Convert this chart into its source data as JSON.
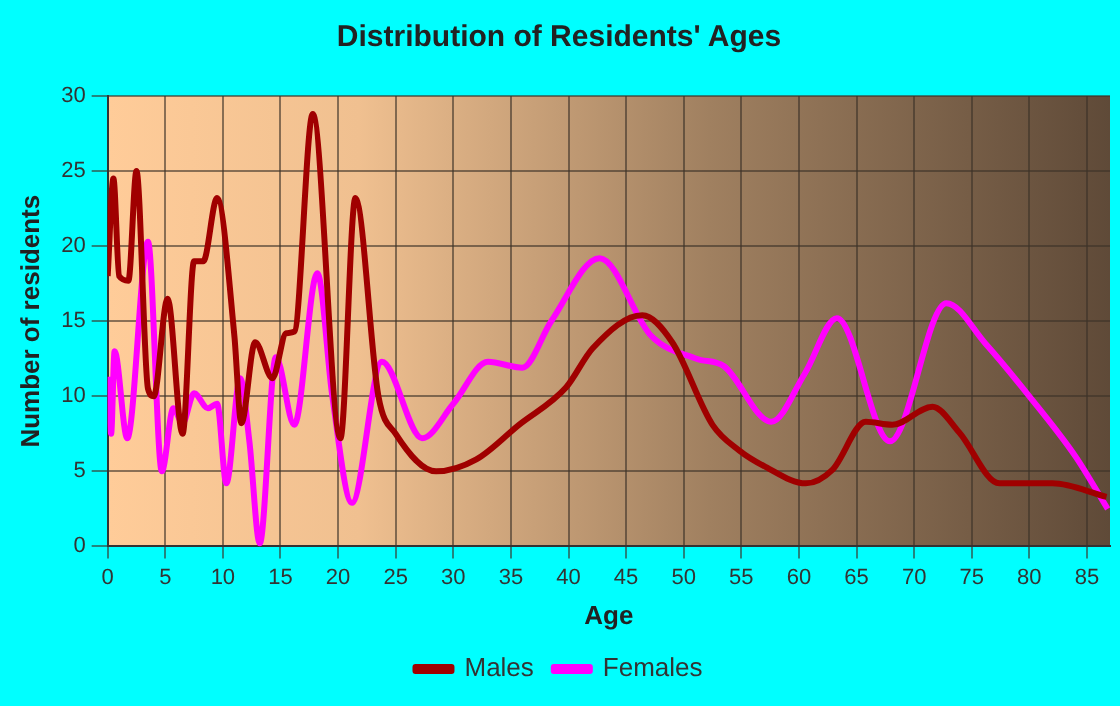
{
  "chart_data": {
    "type": "line",
    "title": "Distribution of Residents' Ages",
    "xlabel": "Age",
    "ylabel": "Number of residents",
    "xlim": [
      0,
      87
    ],
    "xticks": [
      0,
      5,
      10,
      15,
      20,
      25,
      30,
      35,
      40,
      45,
      50,
      55,
      60,
      65,
      70,
      75,
      80,
      85
    ],
    "ylim": [
      0,
      30
    ],
    "yticks": [
      0,
      5,
      10,
      15,
      20,
      25,
      30
    ],
    "grid": true,
    "legend": "bottom",
    "marker": "none",
    "line_style": "solid",
    "series": [
      {
        "name": "Males",
        "color": "#a00000",
        "x": [
          0,
          0.5,
          1,
          1.8,
          2.5,
          3.5,
          4,
          5.2,
          6.5,
          7.5,
          8.3,
          9.5,
          11,
          11.6,
          12.8,
          14.3,
          15.5,
          16.2,
          17.8,
          20.2,
          21.5,
          23.5,
          25,
          28.5,
          32,
          35.7,
          39.8,
          42.1,
          46.4,
          49,
          52.5,
          54.8,
          57.1,
          60.6,
          62.9,
          65.8,
          68.1,
          71.6,
          73.9,
          77.4,
          82,
          86.7
        ],
        "values": [
          18,
          24.5,
          18,
          17.7,
          25,
          10.5,
          10,
          16.5,
          7.5,
          19,
          19,
          23.2,
          14,
          8.2,
          13.6,
          11.2,
          14.2,
          14.3,
          28.8,
          7.2,
          23.2,
          10,
          7.5,
          5,
          5.8,
          8.1,
          10.6,
          13.2,
          15.4,
          13.6,
          8.1,
          6.4,
          5.3,
          4.2,
          5.1,
          8.3,
          8.1,
          9.3,
          7.6,
          4.2,
          4.2,
          3.3
        ]
      },
      {
        "name": "Females",
        "color": "#ff00ff",
        "x": [
          0,
          0.3,
          0.6,
          1.7,
          3.5,
          4.7,
          5.7,
          6.5,
          7.5,
          8.7,
          9.5,
          10.3,
          11.5,
          12.3,
          13.2,
          14.6,
          16.2,
          18.2,
          19.5,
          21.2,
          23.8,
          27.3,
          30,
          33,
          36,
          38.5,
          42.7,
          47.2,
          51.1,
          53.5,
          57.6,
          60.5,
          63.3,
          67.9,
          72.8,
          76.2,
          80,
          84,
          86.8
        ],
        "values": [
          11.3,
          7.5,
          13,
          7.2,
          20.3,
          5,
          9.2,
          8.2,
          10.2,
          9.2,
          9.5,
          4.2,
          11.2,
          7,
          0.2,
          12.6,
          8.1,
          18.2,
          10,
          2.9,
          12.3,
          7.2,
          9.5,
          12.3,
          11.9,
          15,
          19.2,
          14,
          12.5,
          12,
          8.3,
          11.5,
          15.2,
          7,
          16.2,
          13.5,
          10,
          6,
          2.5
        ]
      }
    ]
  }
}
